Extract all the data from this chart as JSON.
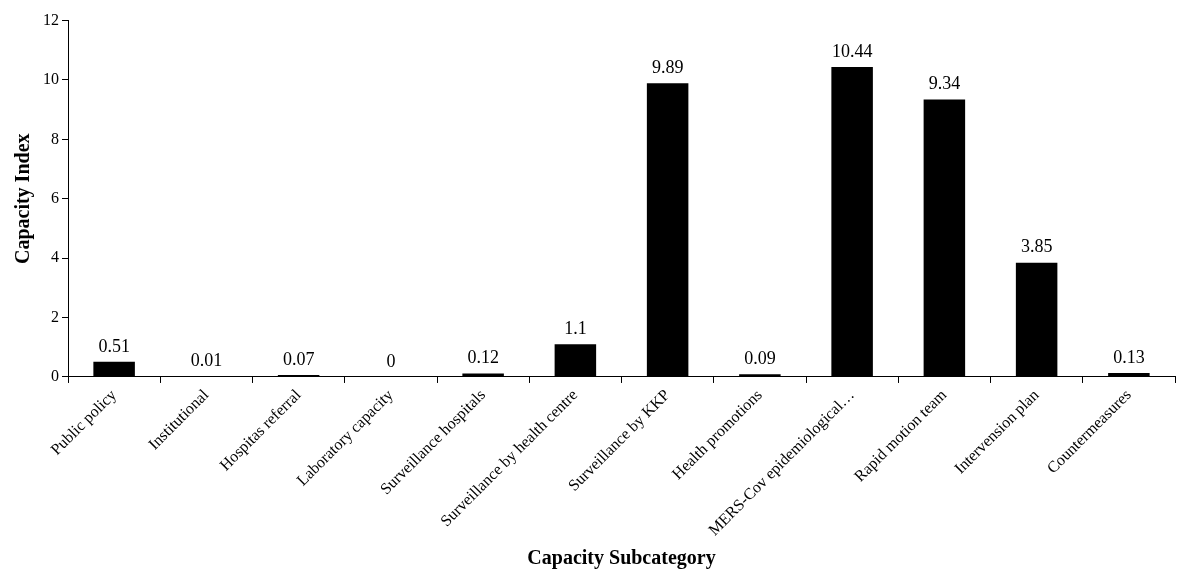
{
  "chart_data": {
    "type": "bar",
    "xlabel": "Capacity Subcategory",
    "ylabel": "Capacity Index",
    "categories": [
      "Public policy",
      "Institutional",
      "Hospitas referral",
      "Laboratory capacity",
      "Surveillance hospitals",
      "Surveillance by health centre",
      "Surveillance by KKP",
      "Health promotions",
      "MERS-Cov epidemiological…",
      "Rapid motion team",
      "Intervension plan",
      "Countermeasures"
    ],
    "values": [
      0.51,
      0.01,
      0.07,
      0,
      0.12,
      1.1,
      9.89,
      0.09,
      10.44,
      9.34,
      3.85,
      0.13
    ],
    "color": "#000000",
    "ylim": [
      0,
      12
    ],
    "yticks": [
      0,
      2,
      4,
      6,
      8,
      10,
      12
    ],
    "grid": false,
    "legend": false,
    "data_labels": true
  }
}
